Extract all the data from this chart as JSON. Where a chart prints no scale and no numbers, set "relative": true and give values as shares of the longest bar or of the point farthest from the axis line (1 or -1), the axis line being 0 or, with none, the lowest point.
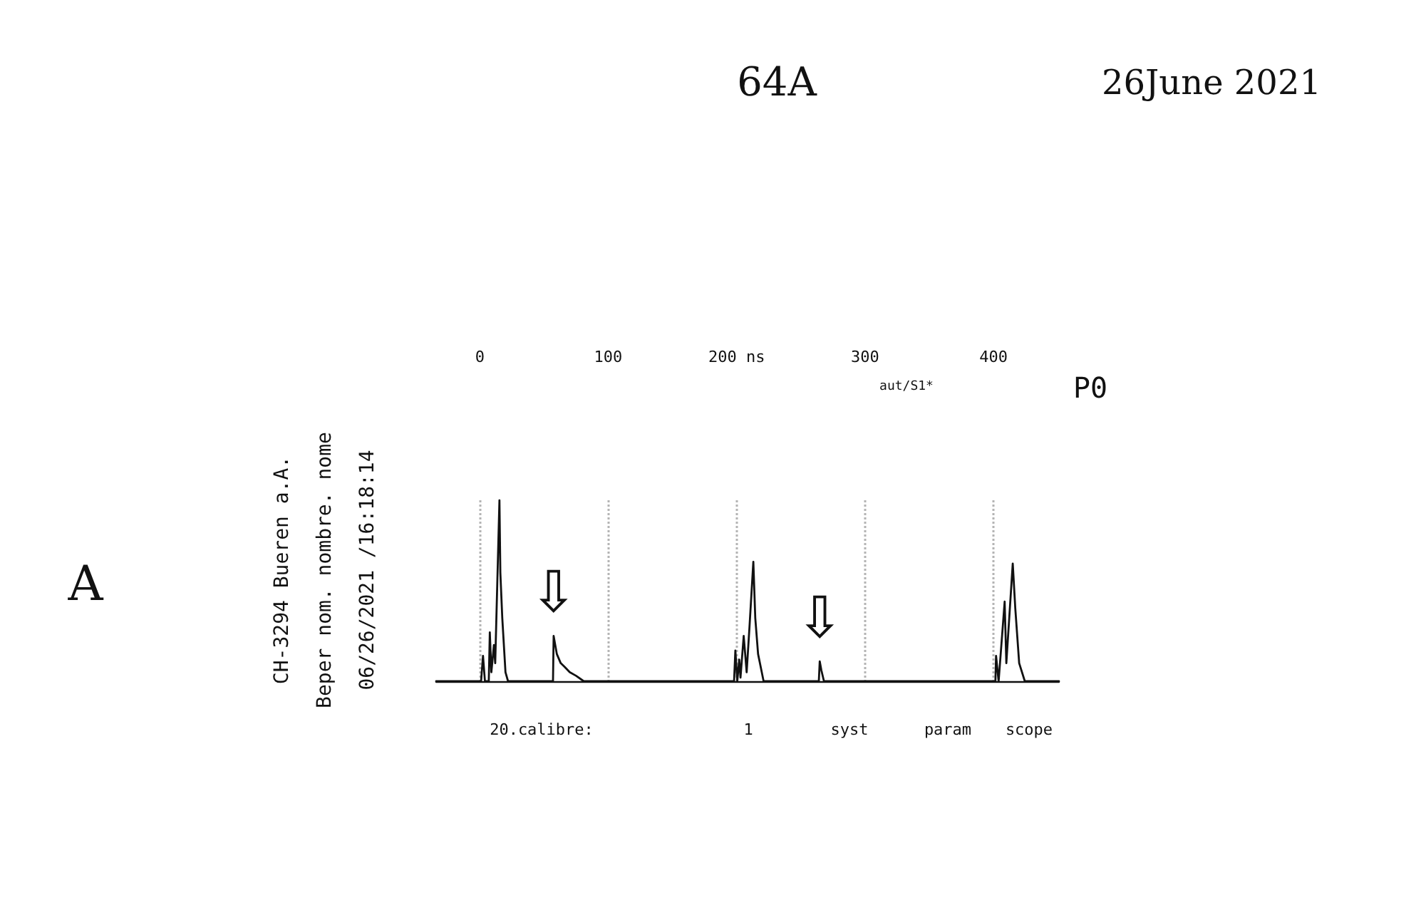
{
  "chart_data": {
    "type": "line",
    "relative": true,
    "color": "#111111",
    "x": [
      -34,
      1,
      2.5,
      4,
      7,
      7.8,
      9,
      11,
      12,
      15.3,
      16,
      17.5,
      20,
      22,
      57,
      57.5,
      60,
      63,
      66,
      70,
      75,
      81,
      198,
      199,
      200.5,
      202,
      203,
      205.5,
      207.8,
      210,
      213,
      214.5,
      216.7,
      221,
      264,
      264.7,
      266,
      268,
      401.5,
      402,
      404,
      408.7,
      410,
      415,
      417,
      420,
      424.4,
      451
    ],
    "values": [
      0,
      0,
      0.14,
      0,
      0,
      0.27,
      0.05,
      0.2,
      0.1,
      1,
      0.6,
      0.35,
      0.05,
      0,
      0,
      0.25,
      0.15,
      0.1,
      0.08,
      0.05,
      0.03,
      0,
      0,
      0.17,
      0,
      0.12,
      0.02,
      0.25,
      0.05,
      0.3,
      0.66,
      0.35,
      0.15,
      0,
      0,
      0.11,
      0.06,
      0,
      0,
      0.14,
      0,
      0.44,
      0.1,
      0.65,
      0.4,
      0.1,
      0,
      0
    ],
    "xlim": [
      -34,
      451
    ],
    "xticks": [
      0,
      100,
      {
        "value": 200,
        "label": "200 ns"
      },
      300,
      400
    ],
    "grid": "x",
    "marker": "none",
    "line_style": "solid",
    "annotations": [
      "64A",
      "26June 2021",
      "A",
      "CH-3294 Bueren a.A.",
      "Beper nom. nombre. nome",
      "06/26/2021 /16:18:14",
      "P0",
      "aut/S1*",
      "20.calibre:",
      "1",
      "syst",
      "param",
      "scope",
      {
        "text": "⇩",
        "x": 57.5,
        "y": 0.25
      },
      {
        "text": "⇩",
        "x": 264.7,
        "y": 0.11
      }
    ]
  }
}
